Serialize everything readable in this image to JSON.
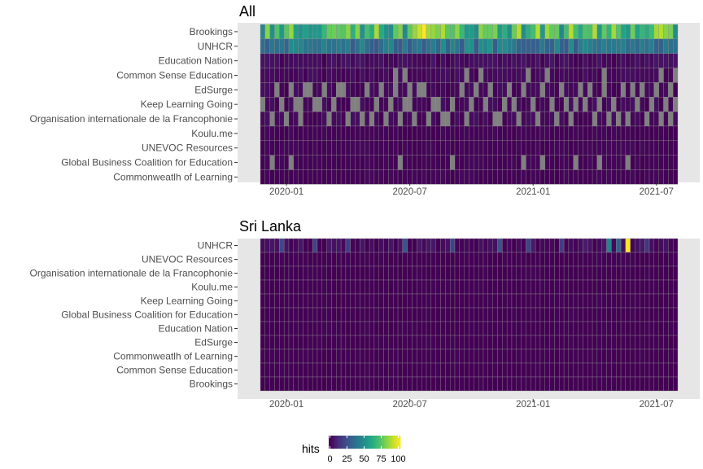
{
  "chart_data": {
    "type": "heatmap",
    "x_ticks": [
      "2020-01",
      "2020-07",
      "2021-01",
      "2021-07"
    ],
    "weeks": 88,
    "week_index_of_2020_01": 5,
    "legend": {
      "title": "hits",
      "ticks": [
        0,
        25,
        50,
        75,
        100
      ],
      "scale": "viridis"
    },
    "panels": [
      {
        "title": "All",
        "rows": [
          {
            "name": "Brookings",
            "base": 68,
            "variance": 22,
            "missing": [],
            "peaks": {
              "34": 100,
              "33": 92,
              "70": 88
            }
          },
          {
            "name": "UNHCR",
            "base": 40,
            "variance": 12,
            "missing": [],
            "peaks": {}
          },
          {
            "name": "Education Nation",
            "base": 3,
            "variance": 3,
            "missing": [],
            "peaks": {}
          },
          {
            "name": "Common Sense Education",
            "base": 2,
            "variance": 2,
            "missing": [
              28,
              30,
              43,
              46,
              56,
              60,
              72,
              84,
              87
            ],
            "peaks": {}
          },
          {
            "name": "EdSurge",
            "base": 2,
            "variance": 2,
            "missing": [
              3,
              6,
              9,
              10,
              13,
              16,
              17,
              22,
              25,
              28,
              31,
              33,
              34,
              42,
              45,
              48,
              52,
              55,
              59,
              63,
              67,
              69,
              72,
              76,
              78,
              80,
              83,
              86
            ],
            "peaks": {}
          },
          {
            "name": "Keep Learning Going",
            "base": 2,
            "variance": 2,
            "missing": [
              0,
              4,
              7,
              8,
              11,
              12,
              15,
              19,
              20,
              24,
              27,
              30,
              31,
              36,
              37,
              40,
              44,
              47,
              51,
              53,
              57,
              61,
              64,
              66,
              68,
              71,
              74,
              79,
              82,
              85,
              87
            ],
            "peaks": {}
          },
          {
            "name": "Organisation internationale de la Francophonie",
            "base": 2,
            "variance": 2,
            "missing": [
              2,
              5,
              8,
              14,
              18,
              21,
              23,
              26,
              29,
              32,
              35,
              38,
              39,
              43,
              49,
              50,
              54,
              58,
              62,
              65,
              70,
              73,
              75,
              77,
              81,
              84,
              86
            ],
            "peaks": {}
          },
          {
            "name": "Koulu.me",
            "base": 1,
            "variance": 1,
            "missing": [],
            "peaks": {}
          },
          {
            "name": "UNEVOC Resources",
            "base": 1,
            "variance": 1,
            "missing": [],
            "peaks": {}
          },
          {
            "name": "Global Business Coalition for Education",
            "base": 1,
            "variance": 1,
            "missing": [
              2,
              6,
              29,
              40,
              55,
              59,
              66,
              71,
              77
            ],
            "peaks": {}
          },
          {
            "name": "Commonweatlh of Learning",
            "base": 1,
            "variance": 1,
            "missing": [],
            "peaks": {}
          }
        ]
      },
      {
        "title": "Sri Lanka",
        "rows": [
          {
            "name": "UNHCR",
            "base": 3,
            "variance": 4,
            "missing": [],
            "peaks": {
              "4": 22,
              "11": 20,
              "18": 18,
              "30": 26,
              "40": 20,
              "50": 26,
              "56": 20,
              "63": 18,
              "73": 45,
              "75": 30,
              "77": 100,
              "81": 15
            }
          },
          {
            "name": "UNEVOC Resources",
            "base": 0,
            "variance": 1,
            "missing": [],
            "peaks": {}
          },
          {
            "name": "Organisation internationale de la Francophonie",
            "base": 0,
            "variance": 1,
            "missing": [],
            "peaks": {}
          },
          {
            "name": "Koulu.me",
            "base": 0,
            "variance": 1,
            "missing": [],
            "peaks": {}
          },
          {
            "name": "Keep Learning Going",
            "base": 0,
            "variance": 1,
            "missing": [],
            "peaks": {}
          },
          {
            "name": "Global Business Coalition for Education",
            "base": 0,
            "variance": 1,
            "missing": [],
            "peaks": {}
          },
          {
            "name": "Education Nation",
            "base": 0,
            "variance": 1,
            "missing": [],
            "peaks": {}
          },
          {
            "name": "EdSurge",
            "base": 0,
            "variance": 1,
            "missing": [],
            "peaks": {}
          },
          {
            "name": "Commonweatlh of Learning",
            "base": 0,
            "variance": 1,
            "missing": [],
            "peaks": {}
          },
          {
            "name": "Common Sense Education",
            "base": 0,
            "variance": 1,
            "missing": [],
            "peaks": {}
          },
          {
            "name": "Brookings",
            "base": 0,
            "variance": 1,
            "missing": [],
            "peaks": {}
          }
        ]
      }
    ]
  }
}
